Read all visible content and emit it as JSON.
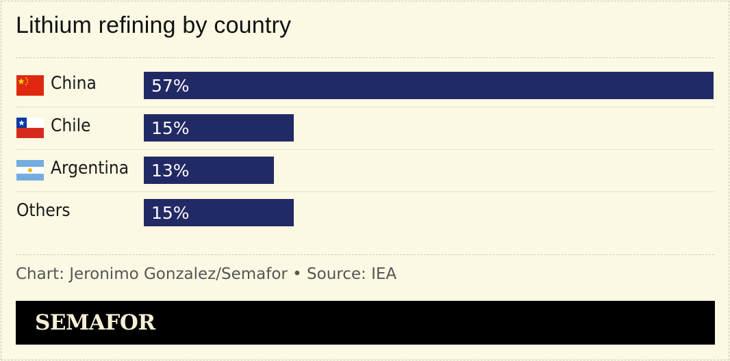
{
  "chart_data": {
    "type": "bar",
    "orientation": "horizontal",
    "title": "Lithium refining by country",
    "categories": [
      "China",
      "Chile",
      "Argentina",
      "Others"
    ],
    "values": [
      57,
      15,
      13,
      15
    ],
    "value_labels": [
      "57%",
      "15%",
      "13%",
      "15%"
    ],
    "unit": "%",
    "bar_color": "#222a66",
    "grid": false,
    "legend": "none"
  },
  "rows": [
    {
      "label": "China",
      "value_label": "57%",
      "flag": "china-flag-icon"
    },
    {
      "label": "Chile",
      "value_label": "15%",
      "flag": "chile-flag-icon"
    },
    {
      "label": "Argentina",
      "value_label": "13%",
      "flag": "argentina-flag-icon"
    },
    {
      "label": "Others",
      "value_label": "15%",
      "flag": null
    }
  ],
  "source": "Chart: Jeronimo Gonzalez/Semafor • Source: IEA",
  "brand": "SEMAFOR",
  "colors": {
    "background": "#fbf8e3",
    "bar": "#222a66",
    "footer": "#000000",
    "logo_text": "#f4efd6"
  }
}
